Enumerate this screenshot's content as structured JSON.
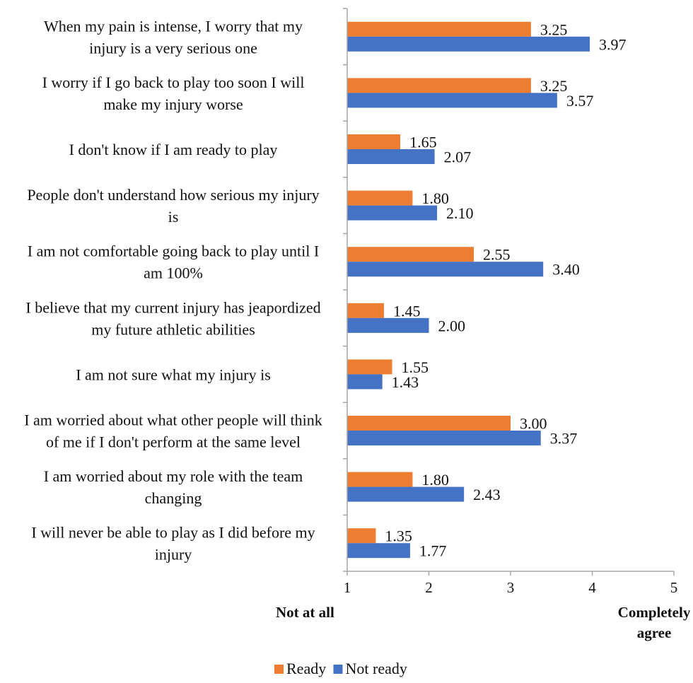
{
  "chart_data": {
    "type": "bar",
    "orientation": "horizontal",
    "title": "",
    "xlabel_left": "Not at all",
    "xlabel_right": [
      "Completely",
      "agree"
    ],
    "xlim": [
      1,
      5
    ],
    "xticks": [
      "1",
      "2",
      "3",
      "4",
      "5"
    ],
    "grid": false,
    "legend_position": "bottom",
    "categories": [
      [
        "When my pain is intense, I worry that my",
        "injury is a very serious one"
      ],
      [
        "I worry if I go back to play too soon I will",
        "make my injury worse"
      ],
      [
        "I don't know if I am ready to play"
      ],
      [
        "People don't understand how serious my injury",
        "is"
      ],
      [
        "I am not comfortable going back to play until I",
        "am 100%"
      ],
      [
        "I believe that my current injury has jeapordized",
        "my future athletic abilities"
      ],
      [
        "I am not sure what my injury is"
      ],
      [
        "I am worried about what other people will think",
        "of me if I don't perform at the same level"
      ],
      [
        "I am worried about my role with the team",
        "changing"
      ],
      [
        "I will never be able to play as I did before my",
        "injury"
      ]
    ],
    "series": [
      {
        "name": "Ready",
        "color": "#ED7D31",
        "values": [
          3.25,
          3.25,
          1.65,
          1.8,
          2.55,
          1.45,
          1.55,
          3.0,
          1.8,
          1.35
        ],
        "labels": [
          "3.25",
          "3.25",
          "1.65",
          "1.80",
          "2.55",
          "1.45",
          "1.55",
          "3.00",
          "1.80",
          "1.35"
        ]
      },
      {
        "name": "Not ready",
        "color": "#4472C4",
        "values": [
          3.97,
          3.57,
          2.07,
          2.1,
          3.4,
          2.0,
          1.43,
          3.37,
          2.43,
          1.77
        ],
        "labels": [
          "3.97",
          "3.57",
          "2.07",
          "2.10",
          "3.40",
          "2.00",
          "1.43",
          "3.37",
          "2.43",
          "1.77"
        ]
      }
    ],
    "axis_color": "#A6A6A6"
  }
}
